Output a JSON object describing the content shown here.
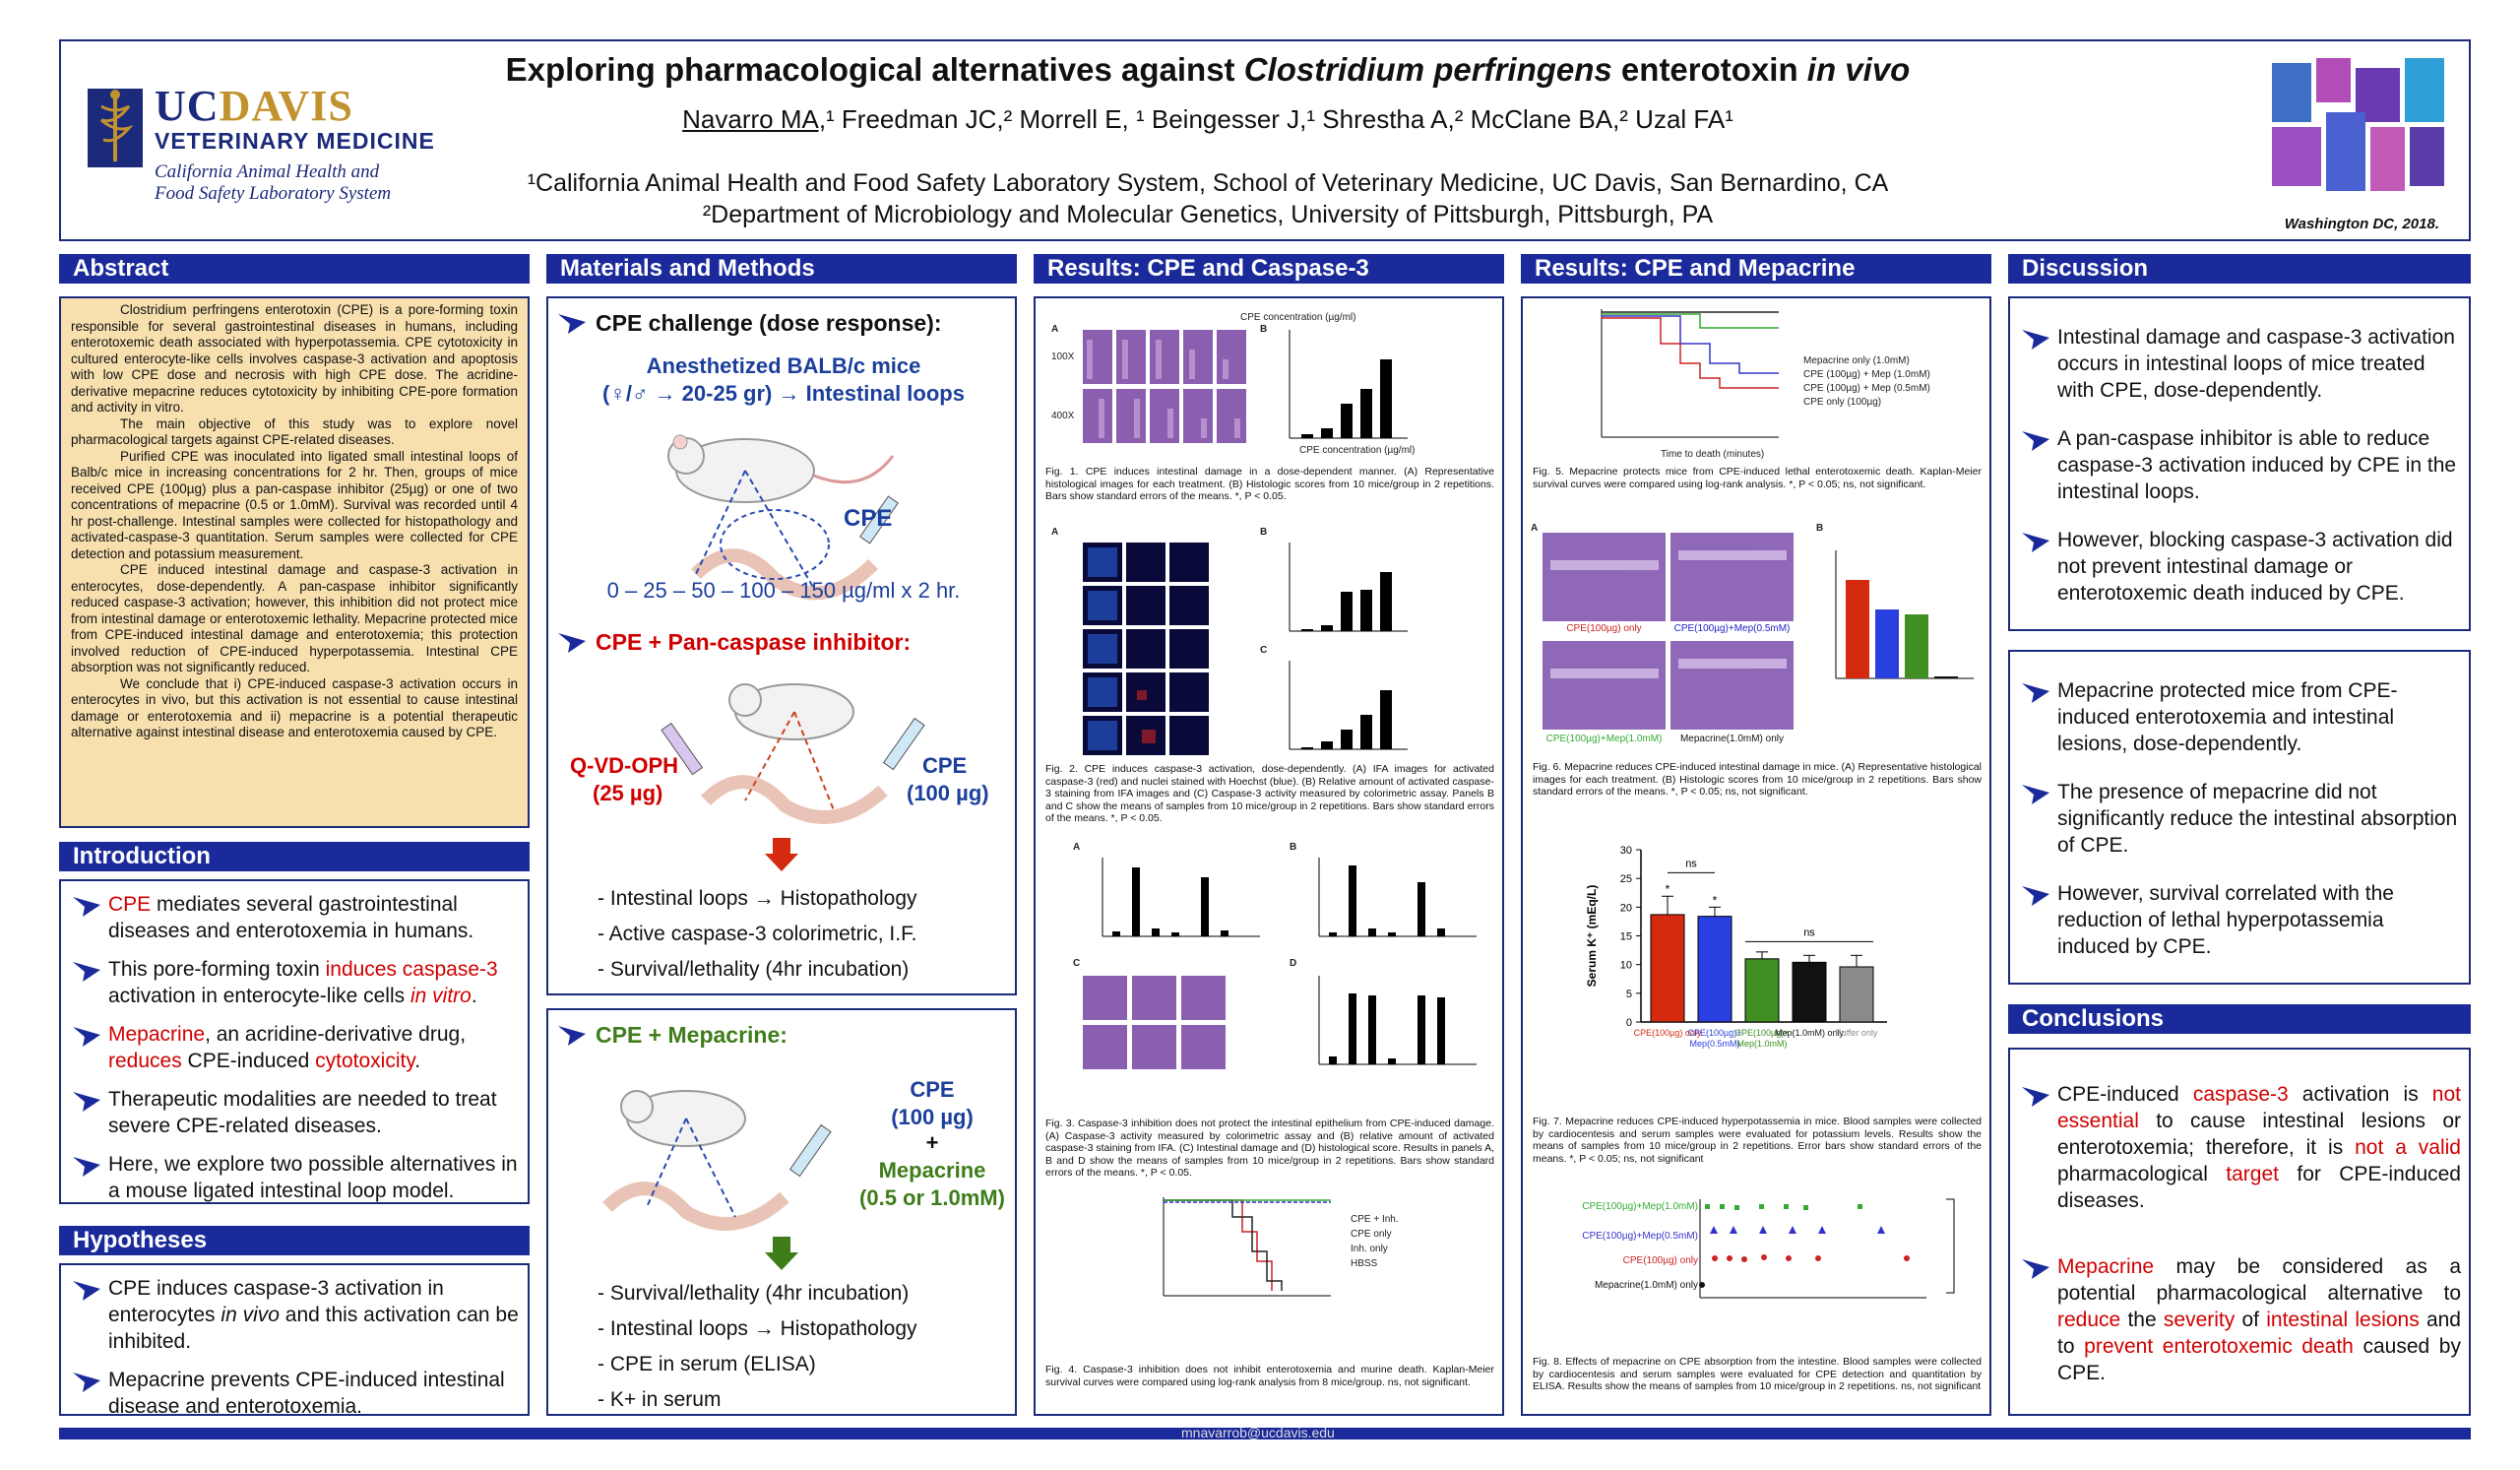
{
  "header": {
    "title_pre": "Exploring pharmacological alternatives against ",
    "title_italic": "Clostridium perfringens",
    "title_mid": " enterotoxin ",
    "title_italic2": "in vivo",
    "author_first": "Navarro MA,",
    "authors_rest": "¹ Freedman JC,² Morrell E, ¹ Beingesser J,¹ Shrestha A,² McClane BA,² Uzal FA¹",
    "affil1": "¹California Animal Health and Food Safety Laboratory System, School of Veterinary Medicine, UC Davis, San Bernardino, CA",
    "affil2": "²Department of Microbiology and Molecular Genetics, University of Pittsburgh, Pittsburgh, PA",
    "meeting": "Washington DC, 2018.",
    "logo_uc": "UC",
    "logo_davis": "DAVIS",
    "logo_vm": "VETERINARY MEDICINE",
    "logo_ca1": "California Animal Health and",
    "logo_ca2": "Food Safety Laboratory System"
  },
  "sections": {
    "abstract": "Abstract",
    "intro": "Introduction",
    "hypo": "Hypotheses",
    "mm": "Materials and Methods",
    "res1": "Results: CPE and Caspase-3",
    "res2": "Results: CPE and Mepacrine",
    "disc": "Discussion",
    "conc": "Conclusions"
  },
  "abstract": {
    "p1": "Clostridium perfringens enterotoxin (CPE) is a pore-forming toxin responsible for several gastrointestinal diseases in humans, including enterotoxemic death associated with hyperpotassemia. CPE cytotoxicity in cultured enterocyte-like cells involves caspase-3 activation and apoptosis with low CPE dose and necrosis with high CPE dose. The acridine-derivative mepacrine reduces cytotoxicity by inhibiting CPE-pore formation and activity in vitro.",
    "p2": "The main objective of this study was to explore novel pharmacological targets against CPE-related diseases.",
    "p3": "Purified CPE was inoculated into ligated small intestinal loops of Balb/c mice in increasing concentrations for 2 hr. Then, groups of mice received CPE (100µg) plus a pan-caspase inhibitor (25µg) or one of two concentrations of mepacrine (0.5 or 1.0mM). Survival was recorded until 4 hr post-challenge. Intestinal samples were collected for histopathology and activated-caspase-3 quantitation. Serum samples were collected for CPE detection and potassium measurement.",
    "p4": "CPE induced intestinal damage and caspase-3 activation in enterocytes, dose-dependently. A pan-caspase inhibitor significantly reduced caspase-3 activation; however, this inhibition did not protect mice from intestinal damage or enterotoxemic lethality. Mepacrine protected mice from CPE-induced intestinal damage and enterotoxemia; this protection involved reduction of CPE-induced hyperpotassemia. Intestinal CPE absorption was not significantly reduced.",
    "p5": "We conclude that i) CPE-induced caspase-3 activation occurs in enterocytes in vivo, but this activation is not essential to cause intestinal damage or enterotoxemia and ii) mepacrine is a potential therapeutic alternative against intestinal disease and enterotoxemia caused by CPE."
  },
  "intro": {
    "b1_red": "CPE",
    "b1": " mediates several gastrointestinal diseases and enterotoxemia in humans.",
    "b2a": "This pore-forming toxin ",
    "b2_red": "induces caspase-3",
    "b2b": " activation in enterocyte-like cells ",
    "b2_it": "in vitro",
    "b2c": ".",
    "b3_red": "Mepacrine",
    "b3a": ", an acridine-derivative drug, ",
    "b3_red2": "reduces",
    "b3b": " CPE-induced ",
    "b3_red3": "cytotoxicity",
    "b3c": ".",
    "b4": "Therapeutic modalities are needed to treat severe CPE-related diseases.",
    "b5": "Here, we explore two possible alternatives in a mouse ligated intestinal loop model."
  },
  "hypo": {
    "b1a": "CPE induces caspase-3 activation in enterocytes ",
    "b1_it": "in vivo",
    "b1b": " and this activation can be inhibited.",
    "b2": "Mepacrine prevents CPE-induced intestinal disease and enterotoxemia."
  },
  "mm": {
    "h1": "CPE challenge (dose response):",
    "mice": "Anesthetized BALB/c mice",
    "mice2": "(♀/♂ → 20-25 gr) → Intestinal loops",
    "cpe": "CPE",
    "doses": "0 – 25 – 50 – 100 – 150 µg/ml x 2 hr.",
    "h2": "CPE + Pan-caspase inhibitor:",
    "qvd": "Q-VD-OPH",
    "qvd_dose": "(25 µg)",
    "cpe2": "CPE",
    "cpe2_dose": "(100 µg)",
    "l1": "- Intestinal loops → Histopathology",
    "l2": "- Active caspase-3 colorimetric, I.F.",
    "l3": "- Survival/lethality (4hr incubation)",
    "h3": "CPE + Mepacrine:",
    "cpe3": "CPE",
    "cpe3_dose": "(100 µg)",
    "plus": "+",
    "mep": "Mepacrine",
    "mep_dose": "(0.5 or 1.0mM)",
    "m1": "- Survival/lethality (4hr incubation)",
    "m2": "- Intestinal loops → Histopathology",
    "m3": "- CPE in serum (ELISA)",
    "m4": "- K+ in serum"
  },
  "figs": {
    "f1": "Fig. 1. CPE induces intestinal damage in a dose-dependent manner. (A) Representative histological images for each treatment. (B) Histologic scores from 10 mice/group in 2 repetitions. Bars show standard errors of the means. *, P < 0.05.",
    "f2": "Fig. 2. CPE induces caspase-3 activation, dose-dependently. (A) IFA images for activated caspase-3 (red) and nuclei stained with Hoechst (blue). (B) Relative amount of activated caspase-3 staining from IFA images and (C) Caspase-3 activity measured by colorimetric assay. Panels B and C show the means of samples from 10 mice/group in 2 repetitions. Bars show standard errors of the means. *, P < 0.05.",
    "f3": "Fig. 3. Caspase-3 inhibition does not protect the intestinal epithelium from CPE-induced damage. (A) Caspase-3 activity measured by colorimetric assay and (B) relative amount of activated caspase-3 staining from IFA. (C) Intestinal damage and (D) histological score. Results in panels A, B and D show the means of samples from 10 mice/group in 2 repetitions. Bars show standard errors of the means. *, P < 0.05.",
    "f4": "Fig. 4. Caspase-3 inhibition does not inhibit enterotoxemia and murine death. Kaplan-Meier survival curves were compared using log-rank analysis from 8 mice/group. ns, not significant.",
    "f5": "Fig. 5. Mepacrine protects mice from CPE-induced lethal enterotoxemic death. Kaplan-Meier survival curves were compared using log-rank analysis. *, P < 0.05; ns, not significant.",
    "f6": "Fig. 6. Mepacrine reduces CPE-induced intestinal damage in mice. (A) Representative histological images for each treatment. (B) Histologic scores from 10 mice/group in 2 repetitions. Bars show standard errors of the means. *, P < 0.05; ns, not significant.",
    "f7": "Fig. 7. Mepacrine reduces CPE-induced hyperpotassemia in mice. Blood samples were collected by cardiocentesis and serum samples were evaluated for potassium levels. Results show the means of samples from 10 mice/group in 2 repetitions. Error bars show standard errors of the means. *, P < 0.05; ns, not significant",
    "f8": "Fig. 8. Effects of mepacrine on CPE absorption from the intestine. Blood samples were collected by cardiocentesis and serum samples were evaluated for CPE detection and quantitation by ELISA. Results show the means of samples from 10 mice/group in 2 repetitions. ns, not significant",
    "f6_lbl1": "CPE(100µg) only",
    "f6_lbl2": "CPE(100µg)+Mep(0.5mM)",
    "f6_lbl3": "CPE(100µg)+Mep(1.0mM)",
    "f6_lbl4": "Mepacrine(1.0mM) only"
  },
  "chart_data": [
    {
      "type": "bar",
      "title": "",
      "ylabel": "Serum K⁺ (mEq/L)",
      "categories": [
        "CPE(100µg) only",
        "CPE(100µg)+Mep(0.5mM)",
        "CPE(100µg)+Mep(1.0mM)",
        "Mep(1.0mM) only",
        "Buffer only"
      ],
      "values": [
        18.7,
        18.4,
        11.0,
        10.4,
        9.6
      ],
      "errors": [
        3.2,
        1.6,
        1.2,
        1.2,
        2.0
      ],
      "colors": [
        "#d42a10",
        "#2a3fe0",
        "#3f8f22",
        "#111111",
        "#8a8a8a"
      ],
      "ylim": [
        0,
        30
      ],
      "yticks": [
        0,
        5,
        10,
        15,
        20,
        25,
        30
      ],
      "annotations": [
        "*",
        "*",
        "ns",
        "ns"
      ]
    }
  ],
  "discussion": {
    "d1": "Intestinal damage and caspase-3 activation occurs in intestinal loops of mice treated with CPE, dose-dependently.",
    "d2": "A pan-caspase inhibitor is able to reduce caspase-3 activation induced by CPE in the intestinal loops.",
    "d3": "However, blocking caspase-3 activation did not prevent intestinal damage or enterotoxemic death induced by CPE.",
    "d4": "Mepacrine protected mice from CPE-induced enterotoxemia and intestinal lesions, dose-dependently.",
    "d5": "The presence of mepacrine did not significantly reduce the intestinal absorption of CPE.",
    "d6": "However, survival correlated with the reduction of lethal hyperpotassemia induced by CPE."
  },
  "conclusions": {
    "c1a": "CPE-induced ",
    "c1_red1": "caspase-3",
    "c1b": " activation is ",
    "c1_red2": "not essential",
    "c1c": " to cause intestinal lesions or enterotoxemia; therefore, it is ",
    "c1_red3": "not a valid",
    "c1d": " pharmacological ",
    "c1_red4": "target",
    "c1e": " for CPE-induced diseases.",
    "c2_red1": "Mepacrine",
    "c2a": " may be considered as a potential pharmacological alternative to ",
    "c2_red2": "reduce",
    "c2b": " the ",
    "c2_red3": "severity",
    "c2c": " of ",
    "c2_red4": "intestinal lesions",
    "c2d": " and to ",
    "c2_red5": "prevent enterotoxemic death",
    "c2e": " caused by CPE."
  },
  "footer": {
    "email": "mnavarrob@ucdavis.edu"
  }
}
